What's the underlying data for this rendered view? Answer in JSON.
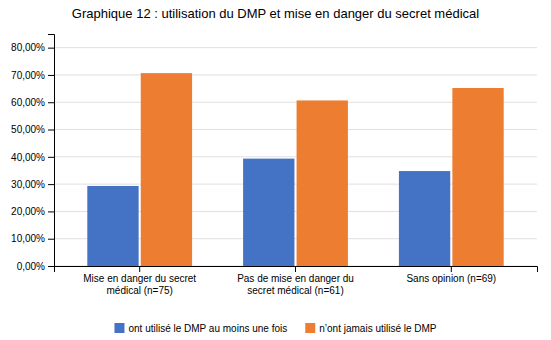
{
  "chart_data": {
    "type": "bar",
    "title": "Graphique 12 : utilisation du DMP et mise en danger du secret médical",
    "categories": [
      "Mise en danger du secret\nmédical (n=75)",
      "Pas de mise en danger du\nsecret médical (n=61)",
      "Sans opinion (n=69)"
    ],
    "series": [
      {
        "name": "ont utilisé le DMP au moins une fois",
        "color": "#4472C4",
        "values": [
          0.2933,
          0.3934,
          0.3478
        ]
      },
      {
        "name": "n’ont jamais utilisé le DMP",
        "color": "#ED7D31",
        "values": [
          0.7067,
          0.6066,
          0.6522
        ]
      }
    ],
    "ylim": [
      0,
      0.85
    ],
    "yticks": [
      {
        "value": 0.0,
        "label": "0,00%"
      },
      {
        "value": 0.1,
        "label": "10,00%"
      },
      {
        "value": 0.2,
        "label": "20,00%"
      },
      {
        "value": 0.3,
        "label": "30,00%"
      },
      {
        "value": 0.4,
        "label": "40,00%"
      },
      {
        "value": 0.5,
        "label": "50,00%"
      },
      {
        "value": 0.6,
        "label": "60,00%"
      },
      {
        "value": 0.7,
        "label": "70,00%"
      },
      {
        "value": 0.8,
        "label": "80,00%"
      }
    ],
    "grid": true,
    "legend": "bottom"
  }
}
